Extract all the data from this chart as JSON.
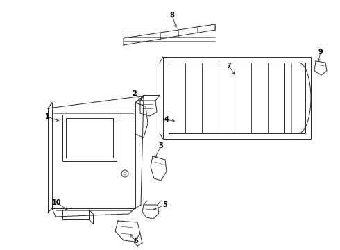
{
  "bg_color": "#ffffff",
  "line_color": "#2a2a2a",
  "lw": 0.7,
  "fig_w": 4.9,
  "fig_h": 3.6,
  "dpi": 100
}
